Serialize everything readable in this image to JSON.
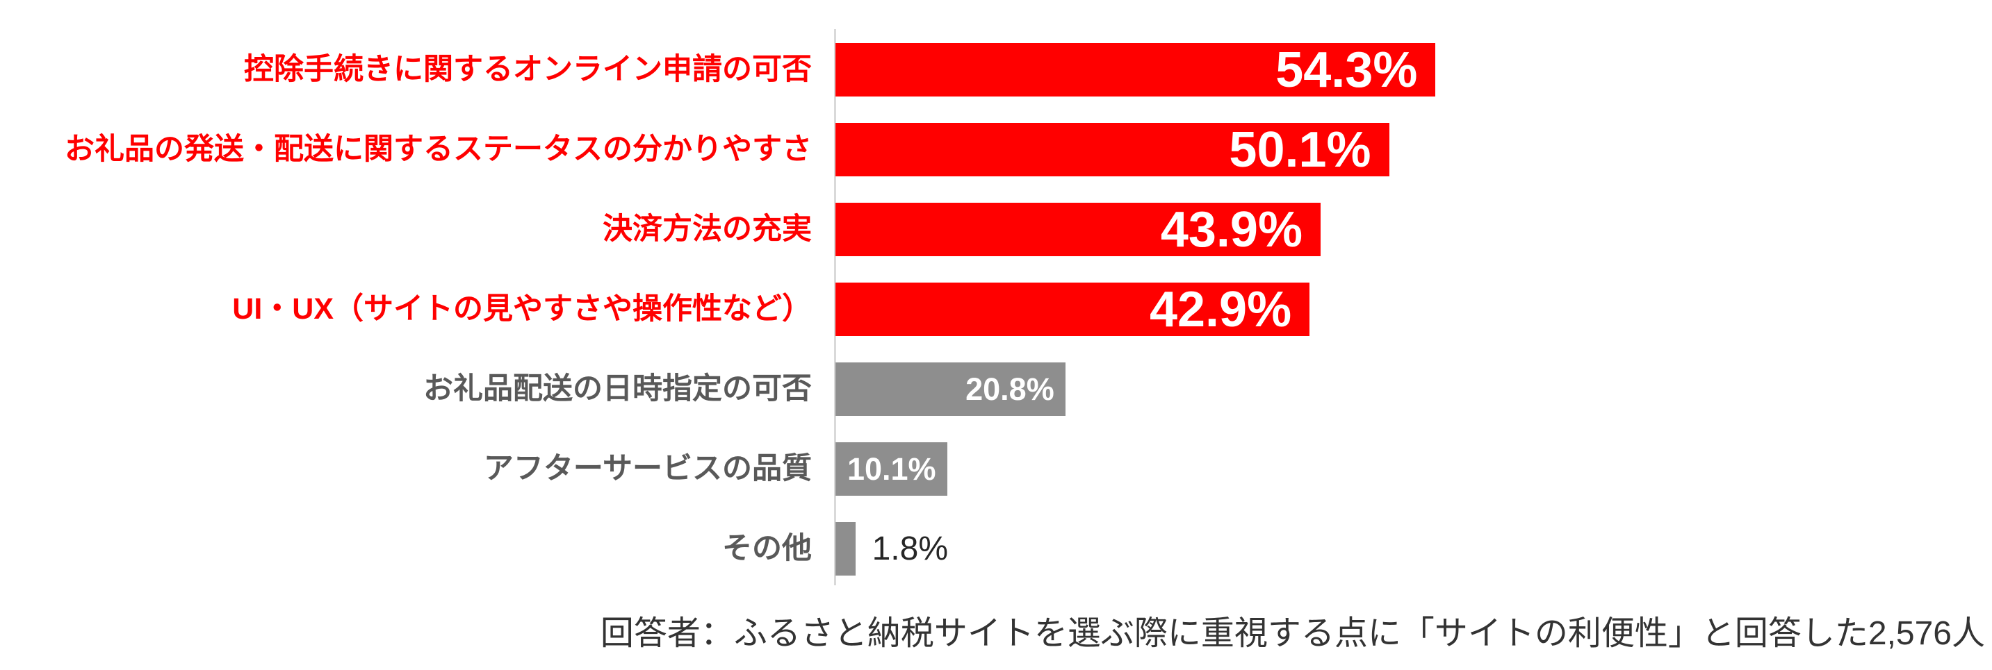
{
  "chart_data": {
    "type": "bar",
    "orientation": "horizontal",
    "title": "",
    "xlabel": "",
    "ylabel": "",
    "xlim": [
      0,
      57
    ],
    "grid": false,
    "legend": false,
    "categories": [
      "控除手続きに関するオンライン申請の可否",
      "お礼品の発送・配送に関するステータスの分かりやすさ",
      "決済方法の充実",
      "UI・UX（サイトの見やすさや操作性など）",
      "お礼品配送の日時指定の可否",
      "アフターサービスの品質",
      "その他"
    ],
    "values": [
      54.3,
      50.1,
      43.9,
      42.9,
      20.8,
      10.1,
      1.8
    ],
    "value_labels": [
      "54.3%",
      "50.1%",
      "43.9%",
      "42.9%",
      "20.8%",
      "10.1%",
      "1.8%"
    ],
    "bar_colors": [
      "#ff0000",
      "#ff0000",
      "#ff0000",
      "#ff0000",
      "#8e8e8e",
      "#8e8e8e",
      "#8e8e8e"
    ],
    "label_colors": [
      "#ff0000",
      "#ff0000",
      "#ff0000",
      "#ff0000",
      "#595959",
      "#595959",
      "#595959"
    ],
    "value_styles": [
      "inside-large",
      "inside-large",
      "inside-large",
      "inside-large",
      "inside-small",
      "inside-small",
      "outside"
    ],
    "highlight_color": "#ff0000",
    "muted_color": "#8e8e8e",
    "axis_line_color": "#d9d9d9",
    "footnote": "回答者：ふるさと納税サイトを選ぶ際に重視する点に「サイトの利便性」と回答した2,576人"
  }
}
